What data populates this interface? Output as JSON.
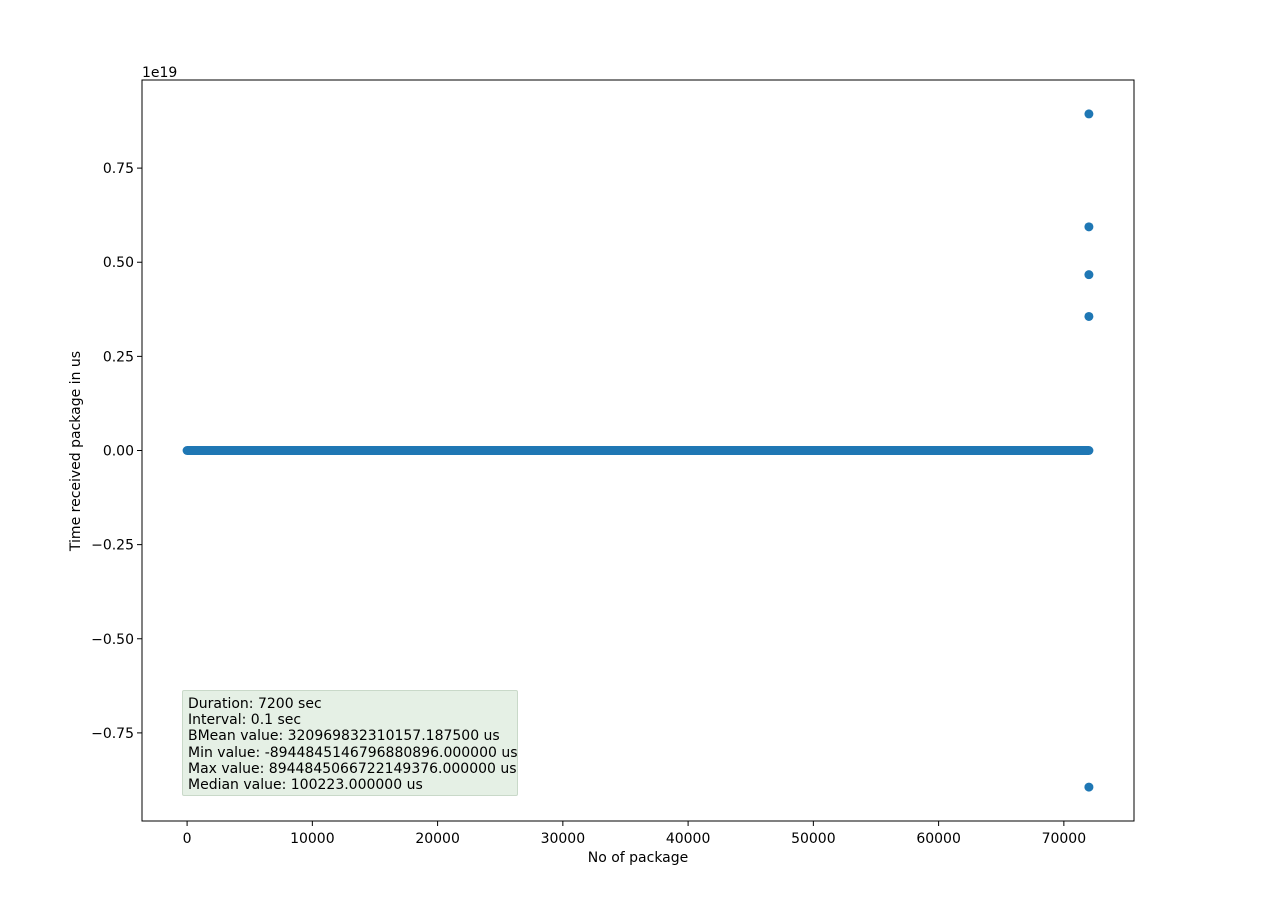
{
  "chart_data": {
    "type": "scatter",
    "title": "",
    "xlabel": "No of package",
    "ylabel": "Time received package in us",
    "y_offset_label": "1e19",
    "x_ticks": [
      0,
      10000,
      20000,
      30000,
      40000,
      50000,
      60000,
      70000
    ],
    "x_tick_labels": [
      "0",
      "10000",
      "20000",
      "30000",
      "40000",
      "50000",
      "60000",
      "70000"
    ],
    "y_ticks": [
      -0.75,
      -0.5,
      -0.25,
      0.0,
      0.25,
      0.5,
      0.75
    ],
    "y_tick_labels": [
      "−0.75",
      "−0.50",
      "−0.25",
      "0.00",
      "0.25",
      "0.50",
      "0.75"
    ],
    "xlim": [
      -3600,
      75600
    ],
    "ylim": [
      -0.984,
      0.984
    ],
    "grid": false,
    "marker_color": "#1f77b4",
    "dense_band": {
      "x_start": 0,
      "x_end": 72000,
      "y": 0.0
    },
    "outliers": [
      {
        "x": 72000,
        "y": 0.894
      },
      {
        "x": 72000,
        "y": 0.594
      },
      {
        "x": 72000,
        "y": 0.467
      },
      {
        "x": 72000,
        "y": 0.356
      },
      {
        "x": 72000,
        "y": -0.894
      }
    ],
    "annotation_lines": [
      "Duration: 7200 sec",
      "Interval: 0.1 sec",
      "BMean value: 320969832310157.187500 us",
      "Min value: -8944845146796880896.000000 us",
      "Max value: 8944845066722149376.000000 us",
      "Median value: 100223.000000 us"
    ],
    "annotation_placement": "bottom-left"
  }
}
